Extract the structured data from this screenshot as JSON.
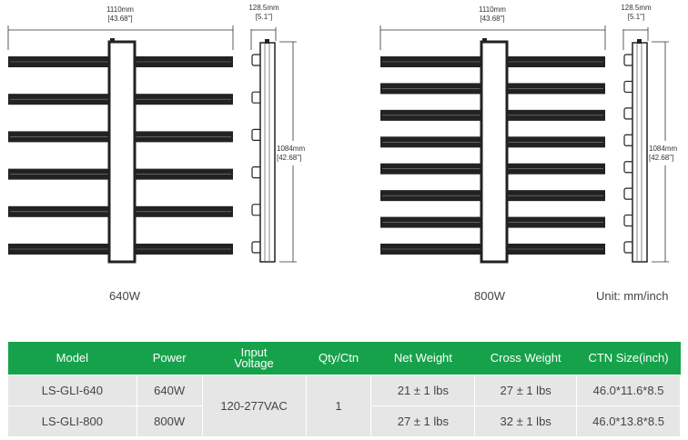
{
  "diagrams": [
    {
      "model_label": "640W",
      "bars": 6,
      "width_mm": "1110mm",
      "width_in": "[43.68\"]",
      "depth_mm": "128.5mm",
      "depth_in": "[5.1\"]",
      "height_mm": "1084mm",
      "height_in": "[42.68\"]"
    },
    {
      "model_label": "800W",
      "bars": 8,
      "width_mm": "1110mm",
      "width_in": "[43.68\"]",
      "depth_mm": "128.5mm",
      "depth_in": "[5.1\"]",
      "height_mm": "1084mm",
      "height_in": "[42.68\"]"
    }
  ],
  "unit_label": "Unit: mm/inch",
  "table": {
    "header_color": "#16a24b",
    "headers": [
      "Model",
      "Power",
      "Input Voltage",
      "Qty/Ctn",
      "Net Weight",
      "Cross Weight",
      "CTN Size(inch)"
    ],
    "rows": [
      {
        "model": "LS-GLI-640",
        "power": "640W",
        "net": "21 ± 1 lbs",
        "cross": "27 ± 1 lbs",
        "ctn": "46.0*11.6*8.5"
      },
      {
        "model": "LS-GLI-800",
        "power": "800W",
        "net": "27 ± 1 lbs",
        "cross": "32 ± 1 lbs",
        "ctn": "46.0*13.8*8.5"
      }
    ],
    "voltage": "120-277VAC",
    "qty": "1"
  }
}
